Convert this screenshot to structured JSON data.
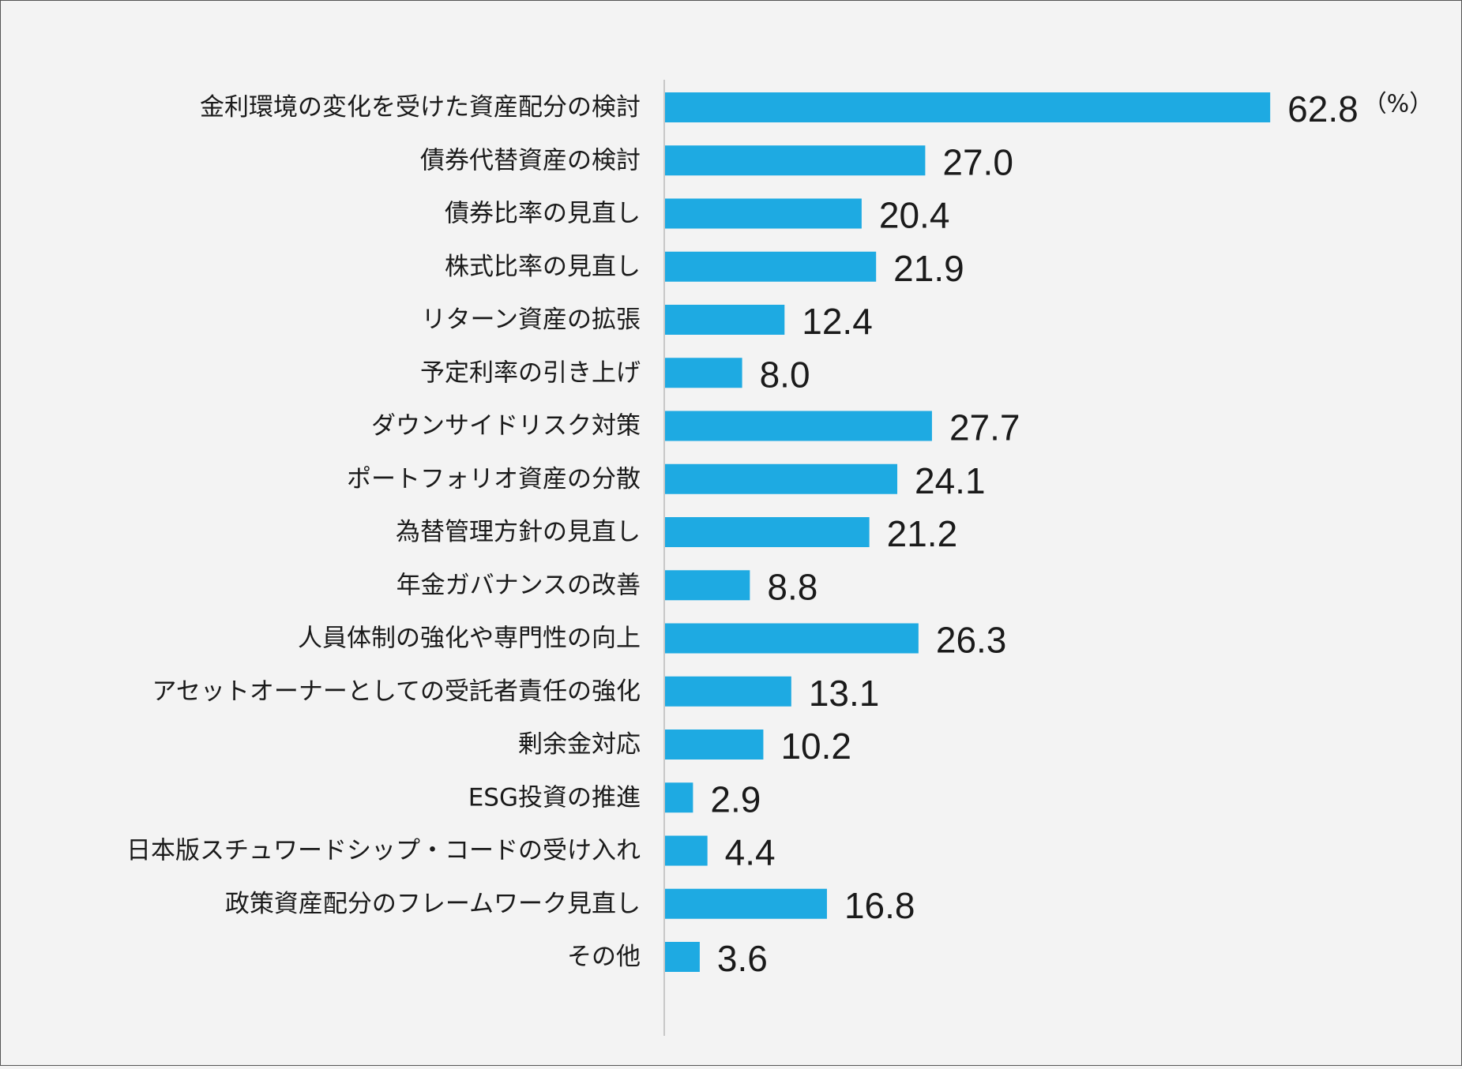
{
  "chart_data": {
    "type": "bar",
    "orientation": "horizontal",
    "title": "",
    "xlabel": "",
    "ylabel": "",
    "unit": "（%）",
    "xlim": [
      0,
      70
    ],
    "grid": false,
    "legend": "none",
    "bar_color": "#1eaae2",
    "axis_color": "#c8c8c8",
    "categories": [
      "金利環境の変化を受けた資産配分の検討",
      "債券代替資産の検討",
      "債券比率の見直し",
      "株式比率の見直し",
      "リターン資産の拡張",
      "予定利率の引き上げ",
      "ダウンサイドリスク対策",
      "ポートフォリオ資産の分散",
      "為替管理方針の見直し",
      "年金ガバナンスの改善",
      "人員体制の強化や専門性の向上",
      "アセットオーナーとしての受託者責任の強化",
      "剰余金対応",
      "ESG投資の推進",
      "日本版スチュワードシップ・コードの受け入れ",
      "政策資産配分のフレームワーク見直し",
      "その他"
    ],
    "values": [
      62.8,
      27.0,
      20.4,
      21.9,
      12.4,
      8.0,
      27.7,
      24.1,
      21.2,
      8.8,
      26.3,
      13.1,
      10.2,
      2.9,
      4.4,
      16.8,
      3.6
    ],
    "value_labels": [
      "62.8",
      "27.0",
      "20.4",
      "21.9",
      "12.4",
      "8.0",
      "27.7",
      "24.1",
      "21.2",
      "8.8",
      "26.3",
      "13.1",
      "10.2",
      "2.9",
      "4.4",
      "16.8",
      "3.6"
    ]
  }
}
